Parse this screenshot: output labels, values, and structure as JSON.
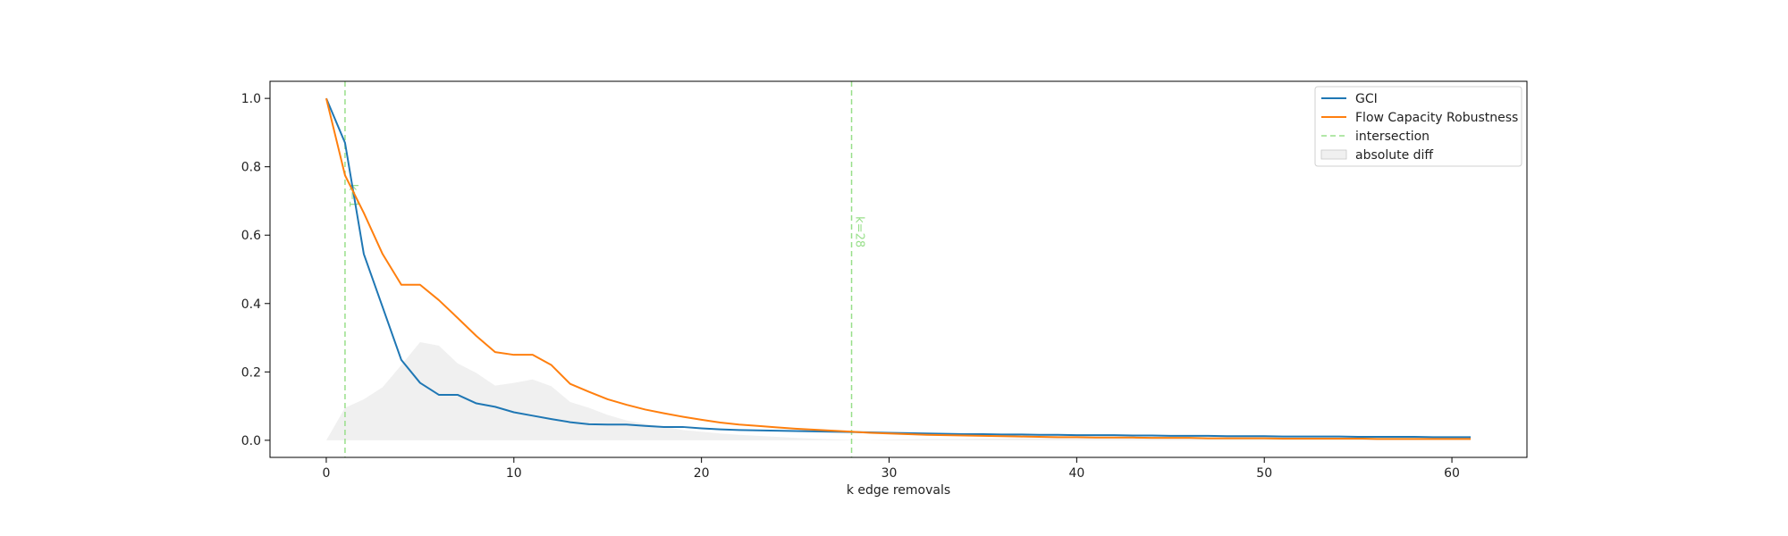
{
  "chart_data": {
    "type": "line",
    "title": "",
    "xlabel": "k edge removals",
    "ylabel": "",
    "xlim": [
      -3,
      64
    ],
    "ylim": [
      -0.05,
      1.05
    ],
    "x_ticks": [
      0,
      10,
      20,
      30,
      40,
      50,
      60
    ],
    "y_ticks": [
      0.0,
      0.2,
      0.4,
      0.6,
      0.8,
      1.0
    ],
    "x_tick_labels": [
      "0",
      "10",
      "20",
      "30",
      "40",
      "50",
      "60"
    ],
    "y_tick_labels": [
      "0.0",
      "0.2",
      "0.4",
      "0.6",
      "0.8",
      "1.0"
    ],
    "grid": false,
    "legend_position": "top-right",
    "x": [
      0,
      1,
      2,
      3,
      4,
      5,
      6,
      7,
      8,
      9,
      10,
      11,
      12,
      13,
      14,
      15,
      16,
      17,
      18,
      19,
      20,
      21,
      22,
      23,
      24,
      25,
      26,
      27,
      28,
      29,
      30,
      31,
      32,
      33,
      34,
      35,
      36,
      37,
      38,
      39,
      40,
      41,
      42,
      43,
      44,
      45,
      46,
      47,
      48,
      49,
      50,
      51,
      52,
      53,
      54,
      55,
      56,
      57,
      58,
      59,
      60,
      61
    ],
    "series": [
      {
        "name": "GCI",
        "color": "#1f77b4",
        "values": [
          1.0,
          0.87,
          0.545,
          0.39,
          0.235,
          0.168,
          0.133,
          0.133,
          0.108,
          0.098,
          0.082,
          0.072,
          0.062,
          0.053,
          0.047,
          0.046,
          0.046,
          0.042,
          0.039,
          0.039,
          0.035,
          0.032,
          0.03,
          0.029,
          0.028,
          0.027,
          0.026,
          0.025,
          0.024,
          0.023,
          0.022,
          0.021,
          0.02,
          0.019,
          0.018,
          0.018,
          0.017,
          0.017,
          0.016,
          0.016,
          0.015,
          0.015,
          0.015,
          0.014,
          0.014,
          0.013,
          0.013,
          0.013,
          0.012,
          0.012,
          0.012,
          0.011,
          0.011,
          0.011,
          0.011,
          0.01,
          0.01,
          0.01,
          0.01,
          0.009,
          0.009,
          0.009
        ]
      },
      {
        "name": "Flow Capacity Robustness",
        "color": "#ff7f0e",
        "values": [
          1.0,
          0.775,
          0.665,
          0.545,
          0.455,
          0.455,
          0.41,
          0.358,
          0.305,
          0.258,
          0.25,
          0.25,
          0.22,
          0.165,
          0.142,
          0.12,
          0.104,
          0.09,
          0.079,
          0.069,
          0.06,
          0.052,
          0.046,
          0.042,
          0.038,
          0.034,
          0.031,
          0.028,
          0.025,
          0.022,
          0.02,
          0.018,
          0.016,
          0.015,
          0.014,
          0.013,
          0.012,
          0.011,
          0.01,
          0.009,
          0.009,
          0.008,
          0.008,
          0.008,
          0.007,
          0.007,
          0.007,
          0.006,
          0.006,
          0.006,
          0.006,
          0.005,
          0.005,
          0.005,
          0.005,
          0.005,
          0.004,
          0.004,
          0.004,
          0.004,
          0.004,
          0.004
        ]
      }
    ],
    "intersections": [
      {
        "x": 1,
        "label": "k=1",
        "label_y": 0.75
      },
      {
        "x": 28,
        "label": "k=28",
        "label_y": 0.655
      }
    ],
    "intersection_color": "#98df8a",
    "fill_color": "#d9d9d9",
    "legend": [
      {
        "label": "GCI",
        "kind": "line",
        "color": "#1f77b4"
      },
      {
        "label": "Flow Capacity Robustness",
        "kind": "line",
        "color": "#ff7f0e"
      },
      {
        "label": "intersection",
        "kind": "dashed",
        "color": "#98df8a"
      },
      {
        "label": "absolute diff",
        "kind": "patch",
        "color": "#d9d9d9"
      }
    ]
  }
}
